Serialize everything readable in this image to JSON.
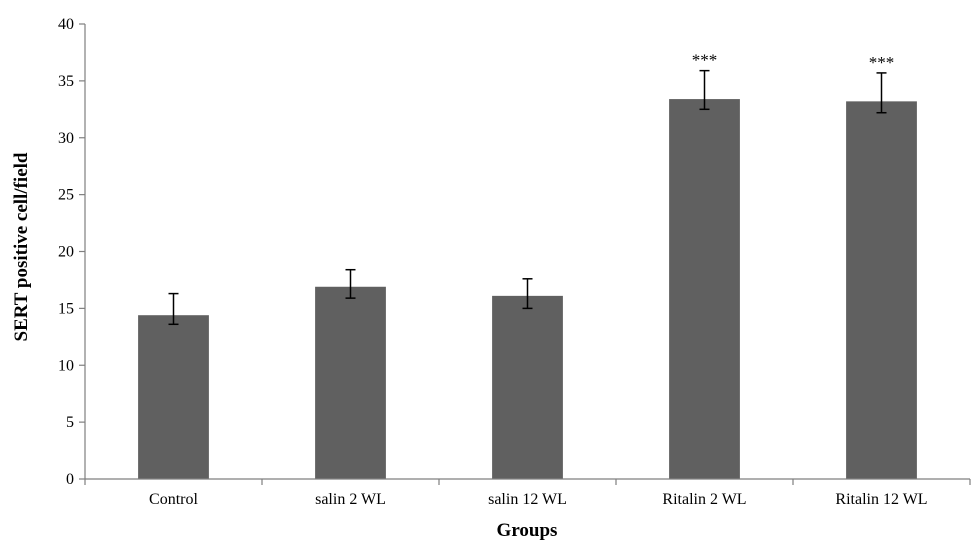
{
  "chart_data": {
    "type": "bar",
    "title": "",
    "xlabel": "Groups",
    "ylabel": "SERT positive cell/field",
    "ylim": [
      0,
      40
    ],
    "yticks": [
      0,
      5,
      10,
      15,
      20,
      25,
      30,
      35,
      40
    ],
    "grid": false,
    "categories": [
      "Control",
      "salin 2 WL",
      "salin 12 WL",
      "Ritalin 2 WL",
      "Ritalin 12 WL"
    ],
    "values": [
      14.4,
      16.9,
      16.1,
      33.4,
      33.2
    ],
    "error_lower": [
      13.6,
      15.9,
      15.0,
      32.5,
      32.2
    ],
    "error_upper": [
      16.3,
      18.4,
      17.6,
      35.9,
      35.7
    ],
    "annotations": [
      "",
      "",
      "",
      "***",
      "***"
    ],
    "bar_color": "#606060"
  }
}
